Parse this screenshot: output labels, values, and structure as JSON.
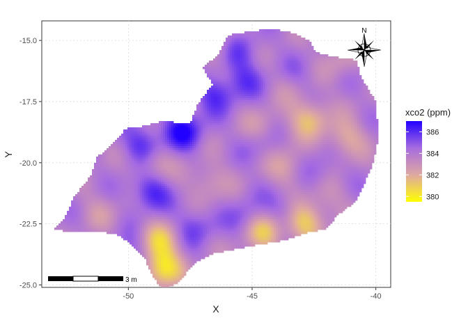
{
  "chart_data": {
    "type": "heatmap",
    "xlabel": "X",
    "ylabel": "Y",
    "xlim": [
      -53.5,
      -39.4
    ],
    "ylim": [
      -25.1,
      -14.2
    ],
    "x_ticks": [
      -50,
      -45,
      -40
    ],
    "x_tick_labels": [
      "-50",
      "-45",
      "-40"
    ],
    "y_ticks": [
      -15.0,
      -17.5,
      -20.0,
      -22.5,
      -25.0
    ],
    "y_tick_labels": [
      "-15.0",
      "-17.5",
      "-20.0",
      "-22.5",
      "-25.0"
    ],
    "grid": true,
    "legend": {
      "title": "xco2 (ppm)",
      "position": "right",
      "range": [
        379.5,
        387.0
      ],
      "breaks": [
        380,
        382,
        384,
        386
      ],
      "break_labels": [
        "380",
        "382",
        "384",
        "386"
      ],
      "colors": [
        "#FFFF00",
        "#DFA9A0",
        "#A66BE0",
        "#2200FF"
      ]
    },
    "hotspots_high": [
      {
        "x": -47.8,
        "y": -18.7,
        "v": 386.8
      },
      {
        "x": -49.4,
        "y": -19.3,
        "v": 386.2
      },
      {
        "x": -49.1,
        "y": -21.2,
        "v": 386.3
      },
      {
        "x": -46.5,
        "y": -17.2,
        "v": 386.0
      },
      {
        "x": -45.6,
        "y": -15.4,
        "v": 385.6
      },
      {
        "x": -45.3,
        "y": -16.6,
        "v": 385.5
      },
      {
        "x": -47.3,
        "y": -22.6,
        "v": 385.4
      },
      {
        "x": -49.8,
        "y": -23.6,
        "v": 385.2
      },
      {
        "x": -43.8,
        "y": -21.9,
        "v": 385.2
      },
      {
        "x": -45.2,
        "y": -22.3,
        "v": 385.3
      },
      {
        "x": -42.3,
        "y": -20.4,
        "v": 385.0
      },
      {
        "x": -43.2,
        "y": -16.5,
        "v": 385.0
      },
      {
        "x": -44.6,
        "y": -19.2,
        "v": 384.9
      }
    ],
    "hotspots_low": [
      {
        "x": -48.6,
        "y": -24.3,
        "v": 380.2
      },
      {
        "x": -48.8,
        "y": -23.2,
        "v": 381.3
      },
      {
        "x": -44.5,
        "y": -22.8,
        "v": 380.8
      },
      {
        "x": -42.9,
        "y": -22.4,
        "v": 381.0
      },
      {
        "x": -42.7,
        "y": -18.2,
        "v": 381.4
      },
      {
        "x": -41.2,
        "y": -19.0,
        "v": 382.0
      },
      {
        "x": -49.0,
        "y": -20.0,
        "v": 382.3
      },
      {
        "x": -46.8,
        "y": -20.8,
        "v": 382.6
      },
      {
        "x": -43.6,
        "y": -20.2,
        "v": 382.3
      },
      {
        "x": -44.6,
        "y": -18.6,
        "v": 382.6
      },
      {
        "x": -46.2,
        "y": -15.2,
        "v": 382.6
      },
      {
        "x": -43.4,
        "y": -16.8,
        "v": 382.9
      },
      {
        "x": -47.5,
        "y": -16.4,
        "v": 383.1
      },
      {
        "x": -41.4,
        "y": -15.8,
        "v": 382.9
      },
      {
        "x": -51.2,
        "y": -22.0,
        "v": 383.0
      },
      {
        "x": -45.4,
        "y": -24.2,
        "v": 383.0
      },
      {
        "x": -42.0,
        "y": -21.4,
        "v": 382.9
      }
    ],
    "north_arrow": {
      "label": "N"
    },
    "scale_bar": {
      "label": "3 m"
    }
  }
}
